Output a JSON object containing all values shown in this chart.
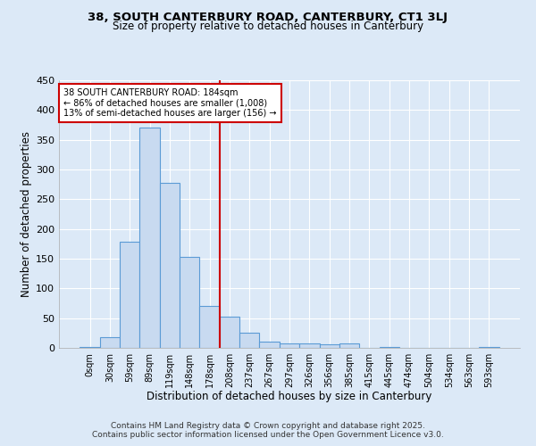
{
  "title": "38, SOUTH CANTERBURY ROAD, CANTERBURY, CT1 3LJ",
  "subtitle": "Size of property relative to detached houses in Canterbury",
  "xlabel": "Distribution of detached houses by size in Canterbury",
  "ylabel": "Number of detached properties",
  "bar_labels": [
    "0sqm",
    "30sqm",
    "59sqm",
    "89sqm",
    "119sqm",
    "148sqm",
    "178sqm",
    "208sqm",
    "237sqm",
    "267sqm",
    "297sqm",
    "326sqm",
    "356sqm",
    "385sqm",
    "415sqm",
    "445sqm",
    "474sqm",
    "504sqm",
    "534sqm",
    "563sqm",
    "593sqm"
  ],
  "bar_values": [
    2,
    18,
    178,
    370,
    278,
    153,
    70,
    53,
    25,
    10,
    7,
    7,
    6,
    7,
    0,
    2,
    0,
    0,
    0,
    0,
    2
  ],
  "bar_color": "#c8daf0",
  "bar_edge_color": "#5b9bd5",
  "annotation_text": "38 SOUTH CANTERBURY ROAD: 184sqm\n← 86% of detached houses are smaller (1,008)\n13% of semi-detached houses are larger (156) →",
  "vline_x": 6.5,
  "vline_color": "#cc0000",
  "annotation_box_color": "#ffffff",
  "annotation_box_edge": "#cc0000",
  "ylim": [
    0,
    450
  ],
  "yticks": [
    0,
    50,
    100,
    150,
    200,
    250,
    300,
    350,
    400,
    450
  ],
  "footer_line1": "Contains HM Land Registry data © Crown copyright and database right 2025.",
  "footer_line2": "Contains public sector information licensed under the Open Government Licence v3.0.",
  "plot_bg_color": "#dce9f7",
  "fig_bg_color": "#dce9f7"
}
